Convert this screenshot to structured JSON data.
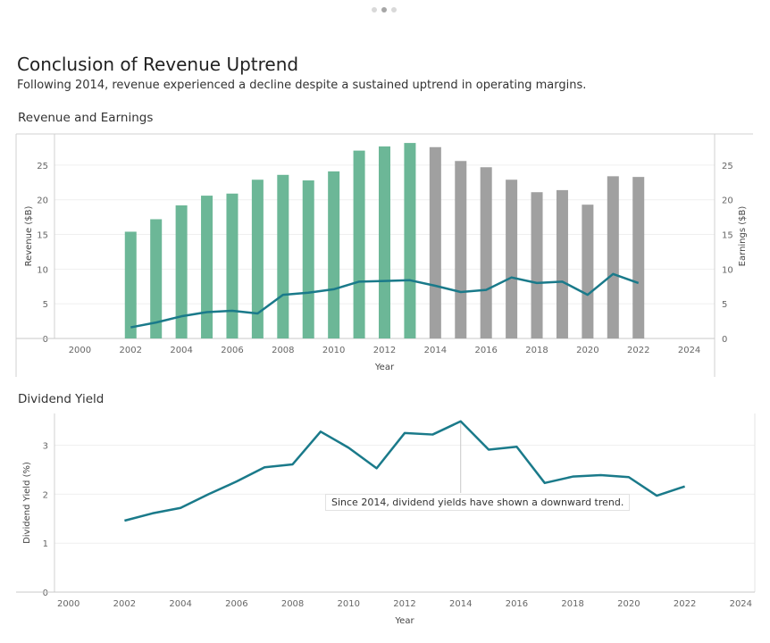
{
  "header": {
    "title": "Conclusion of Revenue Uptrend",
    "subtitle": "Following 2014, revenue experienced a decline despite a sustained uptrend in operating margins."
  },
  "pager": {
    "count": 3,
    "active": 1
  },
  "colors": {
    "green": "#6cb797",
    "gray": "#a0a0a0",
    "line": "#1a7a8a"
  },
  "chart_data": [
    {
      "type": "bar",
      "title": "Revenue and Earnings",
      "xlabel": "Year",
      "ylabel": "Revenue ($B)",
      "y2label": "Earnings ($B)",
      "xlim": [
        1999,
        2025
      ],
      "xticks": [
        2000,
        2002,
        2004,
        2006,
        2008,
        2010,
        2012,
        2014,
        2016,
        2018,
        2020,
        2022,
        2024
      ],
      "ylim": [
        0,
        29.5
      ],
      "yticks": [
        0,
        5,
        10,
        15,
        20,
        25
      ],
      "grid": true,
      "series": [
        {
          "name": "Revenue",
          "chart": "bar",
          "x": [
            2002,
            2003,
            2004,
            2005,
            2006,
            2007,
            2008,
            2009,
            2010,
            2011,
            2012,
            2013,
            2014,
            2015,
            2016,
            2017,
            2018,
            2019,
            2020,
            2021,
            2022
          ],
          "values": [
            15.4,
            17.2,
            19.2,
            20.6,
            20.9,
            22.9,
            23.6,
            22.8,
            24.1,
            27.1,
            27.7,
            28.2,
            27.6,
            25.6,
            24.7,
            22.9,
            21.1,
            21.4,
            19.3,
            23.4,
            23.3
          ],
          "colors": [
            "green",
            "green",
            "green",
            "green",
            "green",
            "green",
            "green",
            "green",
            "green",
            "green",
            "green",
            "green",
            "gray",
            "gray",
            "gray",
            "gray",
            "gray",
            "gray",
            "gray",
            "gray",
            "gray"
          ]
        },
        {
          "name": "Earnings",
          "chart": "line",
          "x": [
            2002,
            2003,
            2004,
            2005,
            2006,
            2007,
            2008,
            2009,
            2010,
            2011,
            2012,
            2013,
            2014,
            2015,
            2016,
            2017,
            2018,
            2019,
            2020,
            2021,
            2022
          ],
          "values": [
            1.6,
            2.3,
            3.2,
            3.8,
            4.0,
            3.6,
            6.3,
            6.6,
            7.1,
            8.2,
            8.3,
            8.4,
            7.6,
            6.7,
            7.0,
            8.8,
            8.0,
            8.2,
            6.3,
            9.3,
            8.0
          ]
        }
      ]
    },
    {
      "type": "line",
      "title": "Dividend Yield",
      "xlabel": "Year",
      "ylabel": "Dividend Yield (%)",
      "xlim": [
        1999.5,
        2024.5
      ],
      "xticks": [
        2000,
        2002,
        2004,
        2006,
        2008,
        2010,
        2012,
        2014,
        2016,
        2018,
        2020,
        2022,
        2024
      ],
      "ylim": [
        0,
        3.65
      ],
      "yticks": [
        0,
        1,
        2,
        3
      ],
      "grid": true,
      "series": [
        {
          "name": "Dividend Yield",
          "x": [
            2002,
            2003,
            2004,
            2005,
            2006,
            2007,
            2008,
            2009,
            2010,
            2011,
            2012,
            2013,
            2014,
            2015,
            2016,
            2017,
            2018,
            2019,
            2020,
            2021,
            2022
          ],
          "values": [
            1.46,
            1.61,
            1.72,
            2.0,
            2.26,
            2.55,
            2.61,
            3.28,
            2.95,
            2.53,
            3.25,
            3.22,
            3.49,
            2.91,
            2.97,
            2.23,
            2.36,
            2.39,
            2.35,
            1.97,
            2.16
          ]
        }
      ],
      "annotation": {
        "text": "Since 2014, dividend yields have shown a downward trend.",
        "x": 2014
      }
    }
  ]
}
